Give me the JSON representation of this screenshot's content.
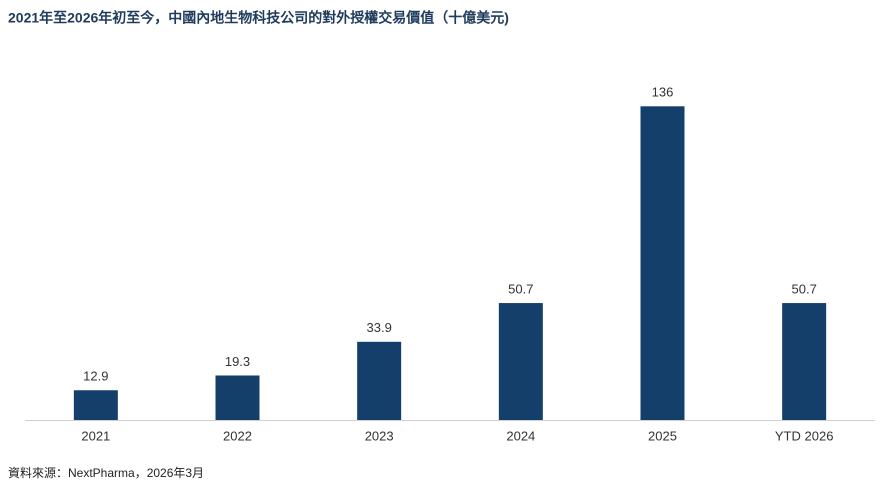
{
  "chart_data": {
    "type": "bar",
    "title": "2021年至2026年初至今，中國內地生物科技公司的對外授權交易價值（十億美元)",
    "categories": [
      "2021",
      "2022",
      "2023",
      "2024",
      "2025",
      "YTD 2026"
    ],
    "values": [
      12.9,
      19.3,
      33.9,
      50.7,
      136,
      50.7
    ],
    "color": "#153f6b",
    "ylim": [
      0,
      150
    ],
    "source": "資料來源：NextPharma，2026年3月"
  }
}
